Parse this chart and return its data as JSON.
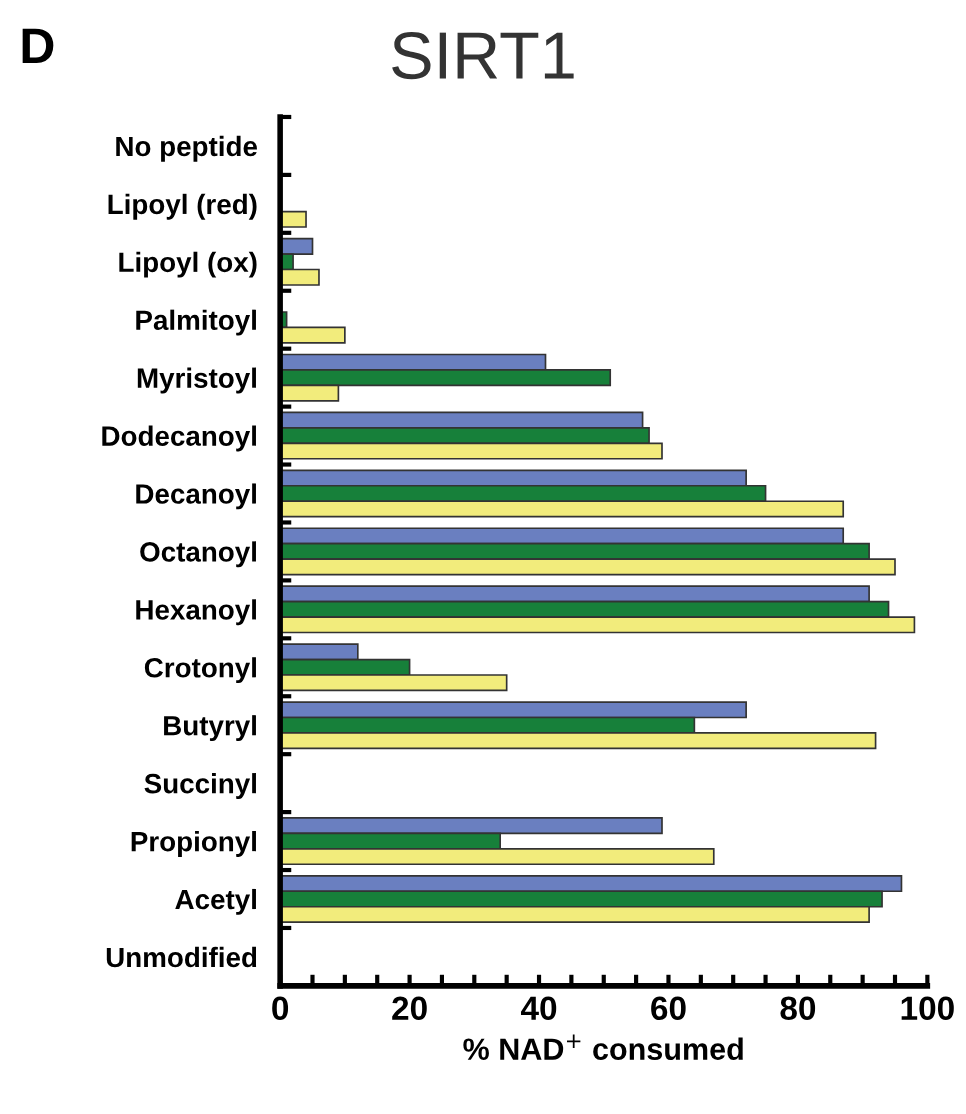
{
  "chart_data": {
    "type": "bar",
    "orientation": "horizontal",
    "title": "SIRT1",
    "annotations": [
      "D"
    ],
    "xlabel": "% NAD$^{+}$ consumed",
    "categories": [
      "No peptide",
      "Lipoyl (red)",
      "Lipoyl (ox)",
      "Palmitoyl",
      "Myristoyl",
      "Dodecanoyl",
      "Decanoyl",
      "Octanoyl",
      "Hexanoyl",
      "Crotonyl",
      "Butyryl",
      "Succinyl",
      "Propionyl",
      "Acetyl",
      "Unmodified"
    ],
    "series": [
      {
        "color": "#6a7fc0",
        "values": [
          null,
          null,
          5,
          null,
          41,
          56,
          72,
          87,
          91,
          12,
          72,
          null,
          59,
          96,
          null
        ]
      },
      {
        "color": "#17803a",
        "values": [
          null,
          null,
          2,
          1,
          51,
          57,
          75,
          91,
          94,
          20,
          64,
          null,
          34,
          93,
          null
        ]
      },
      {
        "color": "#f2ec7c",
        "values": [
          null,
          4,
          6,
          10,
          9,
          59,
          87,
          95,
          98,
          35,
          92,
          null,
          67,
          91,
          null
        ]
      }
    ],
    "xlim": [
      0,
      100
    ],
    "xticks": [
      0,
      {
        "value": 5,
        "label": null
      },
      {
        "value": 10,
        "label": null
      },
      {
        "value": 15,
        "label": null
      },
      20,
      {
        "value": 25,
        "label": null
      },
      {
        "value": 30,
        "label": null
      },
      {
        "value": 35,
        "label": null
      },
      40,
      {
        "value": 45,
        "label": null
      },
      {
        "value": 50,
        "label": null
      },
      {
        "value": 55,
        "label": null
      },
      60,
      {
        "value": 65,
        "label": null
      },
      {
        "value": 70,
        "label": null
      },
      {
        "value": 75,
        "label": null
      },
      80,
      {
        "value": 85,
        "label": null
      },
      {
        "value": 90,
        "label": null
      },
      {
        "value": 95,
        "label": null
      },
      100
    ],
    "grid": false,
    "legend": false
  }
}
